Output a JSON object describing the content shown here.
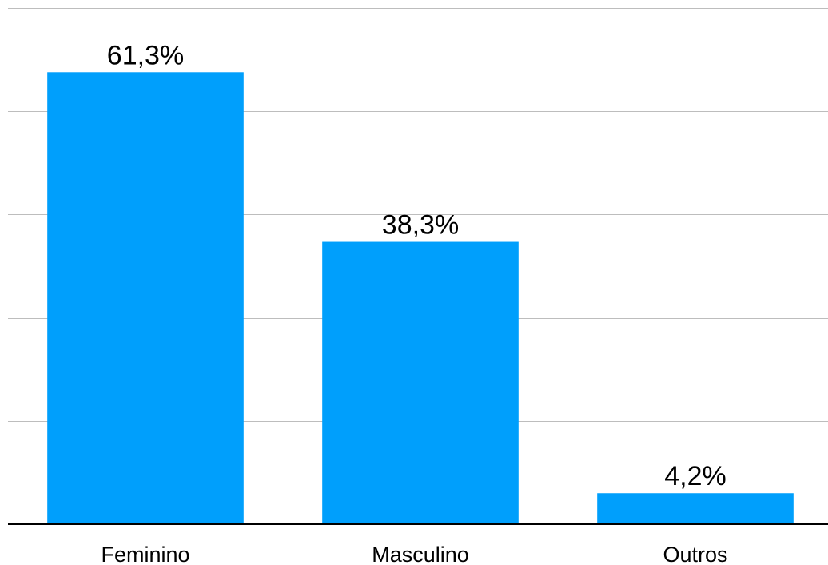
{
  "chart_data": {
    "type": "bar",
    "categories": [
      "Feminino",
      "Masculino",
      "Outros"
    ],
    "values": [
      61.3,
      38.3,
      4.2
    ],
    "value_labels": [
      "61,3%",
      "38,3%",
      "4,2%"
    ],
    "ylim": [
      0,
      70
    ],
    "y_grid_step": 14,
    "grid": true,
    "bar_color": "#009ffc",
    "title": "",
    "xlabel": "",
    "ylabel": ""
  }
}
